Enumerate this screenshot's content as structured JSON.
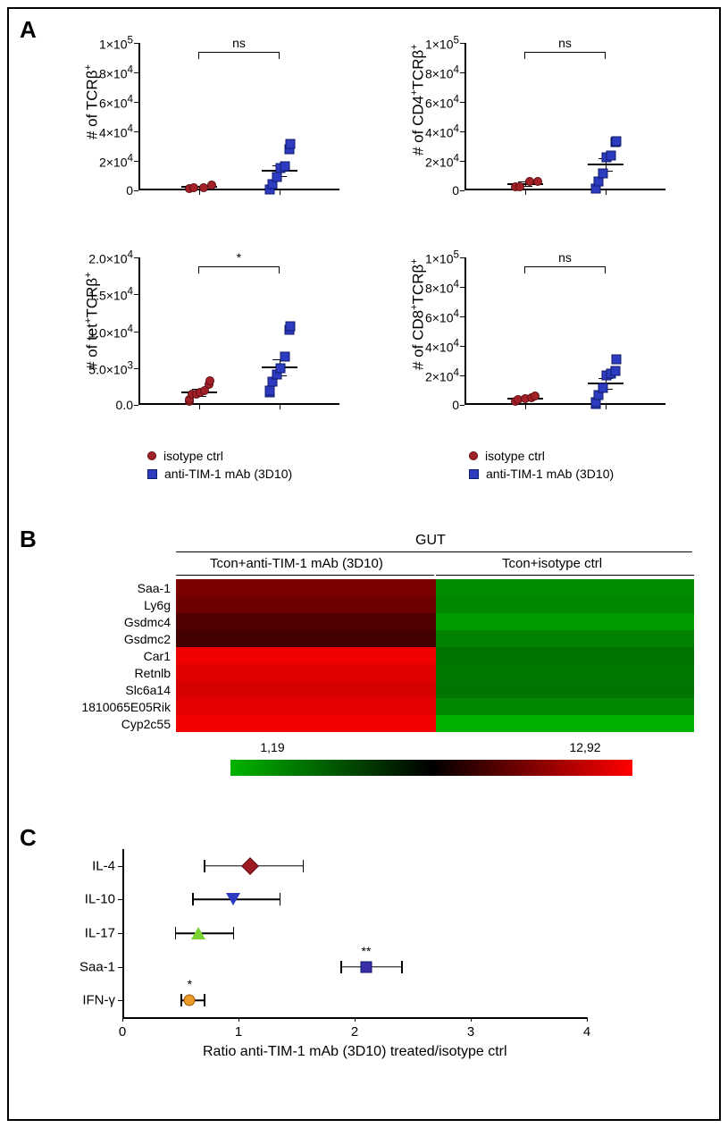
{
  "panelA": {
    "label": "A",
    "plots": [
      {
        "id": "tcrb",
        "ylabel_html": "# of TCRβ<sup>+</sup>",
        "ylim": [
          0,
          100000
        ],
        "yticks": [
          0,
          20000,
          40000,
          60000,
          80000,
          100000
        ],
        "ytick_labels": [
          "0",
          "2×10<sup>4</sup>",
          "4×10<sup>4</sup>",
          "6×10<sup>4</sup>",
          "8×10<sup>4</sup>",
          "1×10<sup>5</sup>"
        ],
        "group1": {
          "mean": 2200,
          "sem": 800,
          "points": [
            1500,
            1700,
            1900,
            3600
          ]
        },
        "group2": {
          "mean": 13200,
          "sem": 3800,
          "points": [
            700,
            900,
            4200,
            8900,
            15200,
            16400,
            28000,
            31500
          ]
        },
        "sig": "ns"
      },
      {
        "id": "cd4",
        "ylabel_html": "# of CD4<sup>+</sup>TCRβ<sup>+</sup>",
        "ylim": [
          0,
          100000
        ],
        "yticks": [
          0,
          20000,
          40000,
          60000,
          80000,
          100000
        ],
        "ytick_labels": [
          "0",
          "2×10<sup>4</sup>",
          "4×10<sup>4</sup>",
          "6×10<sup>4</sup>",
          "8×10<sup>4</sup>",
          "1×10<sup>5</sup>"
        ],
        "group1": {
          "mean": 4300,
          "sem": 1500,
          "points": [
            2500,
            2700,
            6300,
            5900
          ]
        },
        "group2": {
          "mean": 17600,
          "sem": 4200,
          "points": [
            1000,
            1300,
            6000,
            11600,
            22200,
            23400,
            32500,
            33600
          ]
        },
        "sig": "ns"
      },
      {
        "id": "tet",
        "ylabel_html": "# of tet<sup>+</sup>TCRβ<sup>+</sup>",
        "ylim": [
          0,
          20000
        ],
        "yticks": [
          0,
          5000,
          10000,
          15000,
          20000
        ],
        "ytick_labels": [
          "0.0",
          "5.0×10<sup>3</sup>",
          "1.0×10<sup>4</sup>",
          "1.5×10<sup>4</sup>",
          "2.0×10<sup>4</sup>"
        ],
        "group1": {
          "mean": 1700,
          "sem": 500,
          "points": [
            500,
            700,
            1400,
            1500,
            1700,
            1900,
            2800,
            3300
          ]
        },
        "group2": {
          "mean": 5050,
          "sem": 1100,
          "points": [
            1700,
            2000,
            3100,
            4100,
            5000,
            6500,
            10200,
            10700
          ]
        },
        "sig": "*"
      },
      {
        "id": "cd8",
        "ylabel_html": "# of CD8<sup>+</sup>TCRβ<sup>+</sup>",
        "ylim": [
          0,
          100000
        ],
        "yticks": [
          0,
          20000,
          40000,
          60000,
          80000,
          100000
        ],
        "ytick_labels": [
          "0",
          "2×10<sup>4</sup>",
          "4×10<sup>4</sup>",
          "6×10<sup>4</sup>",
          "8×10<sup>4</sup>",
          "1×10<sup>5</sup>"
        ],
        "group1": {
          "mean": 4300,
          "sem": 800,
          "points": [
            2700,
            3600,
            4400,
            5000,
            6100
          ]
        },
        "group2": {
          "mean": 14600,
          "sem": 3600,
          "points": [
            800,
            1700,
            6900,
            11300,
            20200,
            21200,
            23300,
            31100
          ]
        },
        "sig": "ns"
      }
    ],
    "group_colors": {
      "g1": "#a22026",
      "g2": "#2d3bc0"
    },
    "legend": {
      "g1": "isotype ctrl",
      "g2": "anti-TIM-1 mAb (3D10)"
    }
  },
  "panelB": {
    "label": "B",
    "title": "GUT",
    "cond_left": "Tcon+anti-TIM-1 mAb (3D10)",
    "cond_right": "Tcon+isotype ctrl",
    "rows": [
      "Saa-1",
      "Ly6g",
      "Gsdmc4",
      "Gsdmc2",
      "Car1",
      "Retnlb",
      "Slc6a14",
      "1810065E05Rik",
      "Cyp2c55"
    ],
    "values_left": [
      9.9,
      9.6,
      8.9,
      8.6,
      12.6,
      12.2,
      12.0,
      12.3,
      12.7
    ],
    "values_right": [
      2.5,
      2.6,
      2.0,
      2.8,
      3.3,
      3.1,
      3.2,
      2.6,
      1.3
    ],
    "color_min": "#00b400",
    "color_mid": "#000000",
    "color_max": "#ff0000",
    "scale_min": 1.19,
    "scale_max": 12.92,
    "scale_min_label": "1,19",
    "scale_max_label": "12,92"
  },
  "panelC": {
    "label": "C",
    "xlabel": "Ratio anti-TIM-1 mAb (3D10) treated/isotype ctrl",
    "xlim": [
      0,
      4
    ],
    "xticks": [
      0,
      1,
      2,
      3,
      4
    ],
    "items": [
      {
        "label": "IL-4",
        "mean": 1.1,
        "lo": 0.7,
        "hi": 1.55,
        "marker": "diamond",
        "color": "#9e1b24",
        "sig": ""
      },
      {
        "label": "IL-10",
        "mean": 0.95,
        "lo": 0.6,
        "hi": 1.35,
        "marker": "tri-down",
        "color": "#2d3bc0",
        "sig": ""
      },
      {
        "label": "IL-17",
        "mean": 0.65,
        "lo": 0.45,
        "hi": 0.95,
        "marker": "tri-up",
        "color": "#7bd233",
        "sig": ""
      },
      {
        "label": "Saa-1",
        "mean": 2.1,
        "lo": 1.88,
        "hi": 2.4,
        "marker": "sq",
        "color": "#3a2fa8",
        "sig": "**"
      },
      {
        "label": "IFN-γ",
        "mean": 0.58,
        "lo": 0.5,
        "hi": 0.7,
        "marker": "circ",
        "color": "#e89a2a",
        "sig": "*"
      }
    ]
  }
}
